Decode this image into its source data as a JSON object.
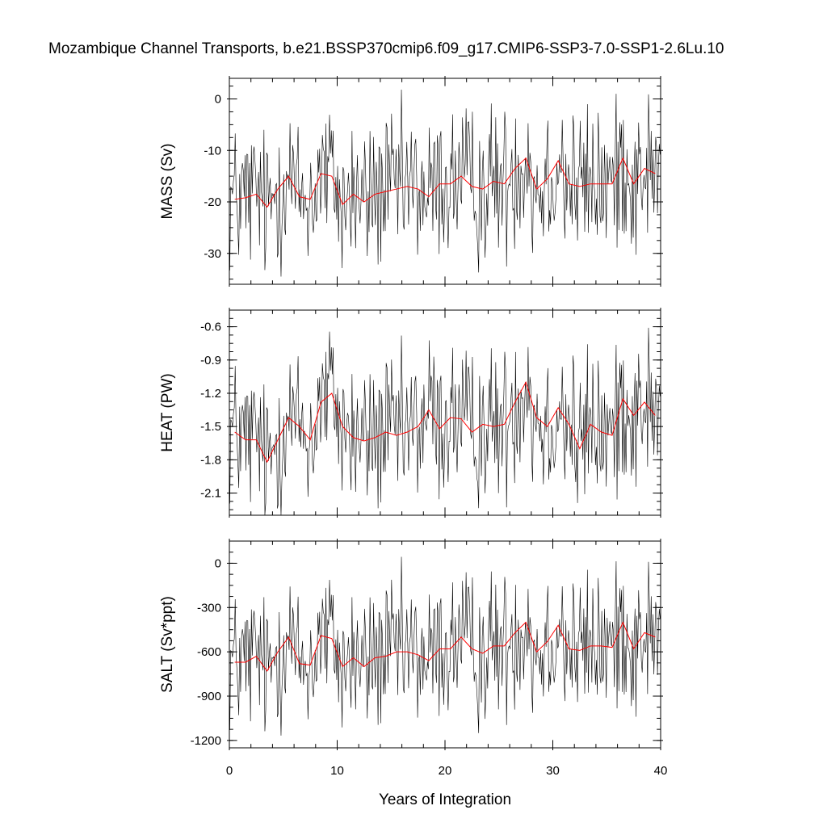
{
  "chart_data": {
    "type": "line",
    "title": "Mozambique Channel Transports, b.e21.BSSP370cmip6.f09_g17.CMIP6-SSP3-7.0-SSP1-2.6Lu.10",
    "xlabel": "Years of Integration",
    "xlim": [
      0,
      40
    ],
    "xticks": [
      0,
      10,
      20,
      30,
      40
    ],
    "colors": {
      "monthly": "#000000",
      "annual_mean": "#ff0000"
    },
    "panels": [
      {
        "ylabel": "MASS (Sv)",
        "ylim": [
          -36,
          4
        ],
        "yticks": [
          0,
          -10,
          -20,
          -30
        ],
        "ytick_labels": [
          "0",
          "-10",
          "-20",
          "-30"
        ],
        "annual_mean": [
          -19.5,
          -19.2,
          -18.5,
          -21.0,
          -17.5,
          -15.0,
          -19.0,
          -19.5,
          -14.5,
          -15.0,
          -20.5,
          -18.5,
          -20.0,
          -18.5,
          -18.0,
          -17.5,
          -17.0,
          -17.5,
          -19.0,
          -16.5,
          -16.5,
          -15.0,
          -17.0,
          -17.5,
          -16.0,
          -16.5,
          -13.5,
          -11.5,
          -17.5,
          -15.5,
          -12.0,
          -16.5,
          -17.0,
          -16.5,
          -16.5,
          -16.5,
          -11.5,
          -16.5,
          -13.5,
          -14.5
        ],
        "monthly_stats": {
          "amplitude": 7.5,
          "min": -36,
          "max": 4
        }
      },
      {
        "ylabel": "HEAT (PW)",
        "ylim": [
          -2.3,
          -0.45
        ],
        "yticks": [
          -0.6,
          -0.9,
          -1.2,
          -1.5,
          -1.8,
          -2.1
        ],
        "ytick_labels": [
          "-0.6",
          "-0.9",
          "-1.2",
          "-1.5",
          "-1.8",
          "-2.1"
        ],
        "annual_mean": [
          -1.55,
          -1.62,
          -1.62,
          -1.82,
          -1.62,
          -1.42,
          -1.5,
          -1.62,
          -1.28,
          -1.2,
          -1.5,
          -1.6,
          -1.63,
          -1.6,
          -1.55,
          -1.58,
          -1.55,
          -1.5,
          -1.35,
          -1.52,
          -1.42,
          -1.43,
          -1.55,
          -1.48,
          -1.5,
          -1.48,
          -1.28,
          -1.1,
          -1.42,
          -1.5,
          -1.33,
          -1.48,
          -1.7,
          -1.48,
          -1.55,
          -1.58,
          -1.25,
          -1.4,
          -1.28,
          -1.4
        ],
        "monthly_stats": {
          "amplitude": 0.35,
          "min": -2.3,
          "max": -0.45
        }
      },
      {
        "ylabel": "SALT (Sv*ppt)",
        "ylim": [
          -1250,
          150
        ],
        "yticks": [
          0,
          -300,
          -600,
          -900,
          -1200
        ],
        "ytick_labels": [
          "0",
          "-300",
          "-600",
          "-900",
          "-1200"
        ],
        "annual_mean": [
          -670,
          -670,
          -630,
          -730,
          -600,
          -500,
          -680,
          -690,
          -490,
          -510,
          -700,
          -640,
          -700,
          -640,
          -630,
          -600,
          -600,
          -620,
          -660,
          -580,
          -580,
          -500,
          -580,
          -610,
          -560,
          -560,
          -470,
          -400,
          -600,
          -530,
          -420,
          -580,
          -590,
          -560,
          -560,
          -570,
          -400,
          -580,
          -470,
          -500
        ],
        "monthly_stats": {
          "amplitude": 250,
          "min": -1250,
          "max": 150
        }
      }
    ]
  }
}
